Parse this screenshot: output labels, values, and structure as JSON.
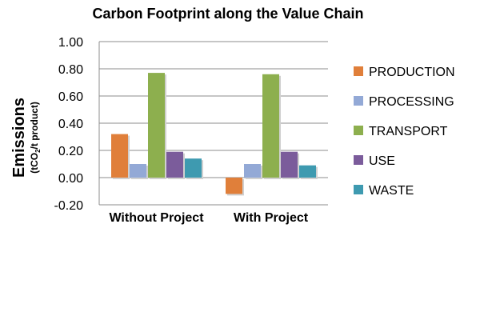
{
  "chart_data": {
    "type": "bar",
    "title": "Carbon Footprint along the Value Chain",
    "ylabel": "Emissions",
    "yunit_prefix": "(tCO",
    "yunit_sub": "2",
    "yunit_suffix": "/t product)",
    "categories": [
      "Without Project",
      "With Project"
    ],
    "yticks": [
      "1.00",
      "0.80",
      "0.60",
      "0.40",
      "0.20",
      "0.00",
      "-0.20"
    ],
    "ylim": [
      -0.2,
      1.0
    ],
    "grid": true,
    "legend_position": "right",
    "series": [
      {
        "name": "PRODUCTION",
        "color": "#E07F3A",
        "values": [
          0.32,
          -0.12
        ]
      },
      {
        "name": "PROCESSING",
        "color": "#93A9D6",
        "values": [
          0.1,
          0.1
        ]
      },
      {
        "name": "TRANSPORT",
        "color": "#8DAF4E",
        "values": [
          0.77,
          0.76
        ]
      },
      {
        "name": "USE",
        "color": "#7B5C9B",
        "values": [
          0.19,
          0.19
        ]
      },
      {
        "name": "WASTE",
        "color": "#3E9AB0",
        "values": [
          0.14,
          0.09
        ]
      }
    ]
  }
}
